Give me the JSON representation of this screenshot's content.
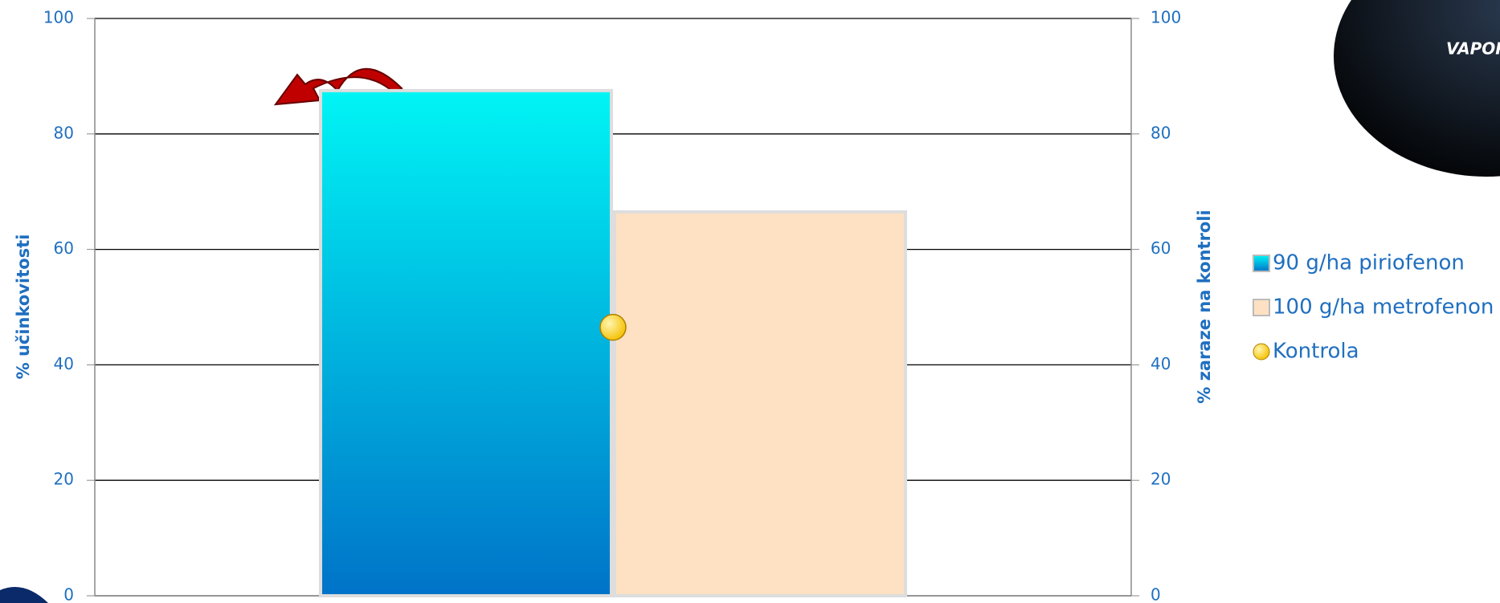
{
  "chart_data": {
    "type": "bar",
    "categories": [
      null
    ],
    "series": [
      {
        "name": "90 g/ha piriofenon",
        "color": "#0073c8",
        "values": [
          87.5
        ]
      },
      {
        "name": "100 g/ha metrofenon",
        "color": "#fde1c2",
        "values": [
          66.5
        ]
      },
      {
        "name": "Kontrola",
        "color": "#f5c000",
        "values": [
          46.5
        ],
        "axis": "y2",
        "type": "scatter"
      }
    ],
    "ylabel": "% učinkovitosti",
    "y2label": "% zaraze na kontroli",
    "ylim": [
      0,
      100
    ],
    "yticks": [
      0,
      20,
      40,
      60,
      80,
      100
    ],
    "y2lim": [
      0,
      100
    ],
    "y2ticks": [
      0,
      20,
      40,
      60,
      80,
      100
    ],
    "grid": true,
    "legend": "right"
  },
  "logo": "VAPOR"
}
